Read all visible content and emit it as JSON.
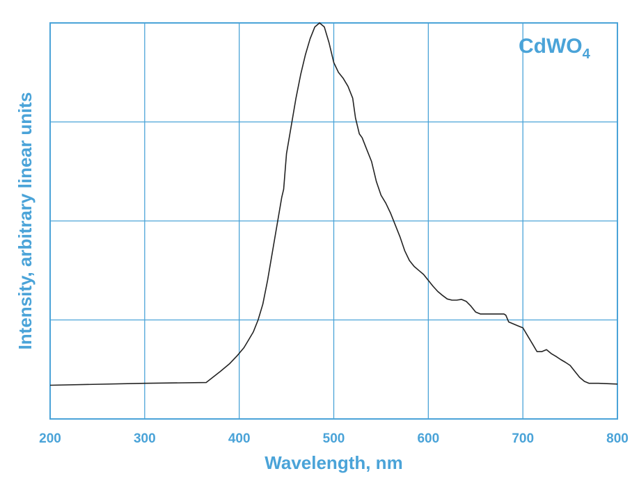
{
  "chart_data": {
    "type": "line",
    "title": "CdWO",
    "title_subscript": "4",
    "xlabel": "Wavelength, nm",
    "ylabel": "Intensity, arbitrary linear units",
    "xlim": [
      200,
      800
    ],
    "ylim": [
      0,
      1
    ],
    "x_ticks": [
      200,
      300,
      400,
      500,
      600,
      700,
      800
    ],
    "x_tick_labels": [
      "200",
      "300",
      "400",
      "500",
      "600",
      "700",
      "800"
    ],
    "y_gridlines": [
      0.25,
      0.5,
      0.75
    ],
    "y_tick_labels_shown": false,
    "grid": true,
    "colors": {
      "axis_and_grid": "#4aa3d8",
      "text": "#4aa3d8",
      "line": "#222222"
    },
    "series": [
      {
        "x": [
          200,
          300,
          365,
          380,
          390,
          398,
          405,
          410,
          415,
          420,
          425,
          430,
          435,
          440,
          445,
          447,
          450,
          455,
          460,
          465,
          470,
          475,
          480,
          485,
          490,
          495,
          500,
          505,
          510,
          515,
          520,
          523,
          527,
          530,
          535,
          540,
          545,
          550,
          555,
          560,
          565,
          570,
          575,
          580,
          585,
          590,
          595,
          600,
          605,
          610,
          615,
          620,
          625,
          630,
          635,
          640,
          645,
          650,
          655,
          660,
          670,
          680,
          682,
          685,
          690,
          695,
          700,
          705,
          710,
          715,
          720,
          725,
          730,
          735,
          740,
          745,
          750,
          755,
          760,
          765,
          770,
          780,
          800
        ],
        "y": [
          0.085,
          0.09,
          0.092,
          0.12,
          0.14,
          0.16,
          0.18,
          0.2,
          0.22,
          0.25,
          0.29,
          0.35,
          0.42,
          0.49,
          0.56,
          0.58,
          0.67,
          0.74,
          0.81,
          0.87,
          0.92,
          0.96,
          0.99,
          1.0,
          0.99,
          0.95,
          0.9,
          0.875,
          0.86,
          0.84,
          0.81,
          0.76,
          0.72,
          0.71,
          0.68,
          0.65,
          0.6,
          0.565,
          0.545,
          0.52,
          0.49,
          0.46,
          0.425,
          0.4,
          0.385,
          0.375,
          0.365,
          0.35,
          0.335,
          0.322,
          0.312,
          0.303,
          0.3,
          0.3,
          0.302,
          0.297,
          0.285,
          0.27,
          0.265,
          0.265,
          0.265,
          0.265,
          0.262,
          0.245,
          0.24,
          0.235,
          0.23,
          0.21,
          0.19,
          0.17,
          0.17,
          0.175,
          0.165,
          0.158,
          0.15,
          0.143,
          0.135,
          0.12,
          0.105,
          0.095,
          0.09,
          0.09,
          0.088
        ]
      }
    ]
  }
}
